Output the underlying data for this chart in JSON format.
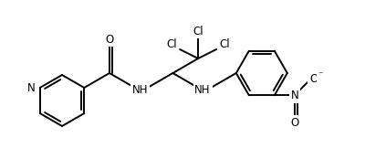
{
  "bg_color": "#ffffff",
  "line_color": "#000000",
  "line_width": 1.4,
  "font_size": 8.5,
  "figsize": [
    4.0,
    1.74
  ],
  "dpi": 100,
  "xlim": [
    0,
    400
  ],
  "ylim": [
    0,
    174
  ]
}
